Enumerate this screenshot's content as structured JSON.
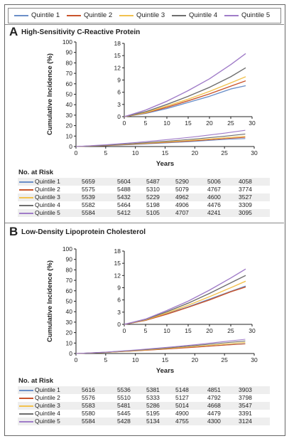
{
  "legend": [
    {
      "name": "Quintile 1",
      "color": "#6b8fc8"
    },
    {
      "name": "Quintile 2",
      "color": "#c9542c"
    },
    {
      "name": "Quintile 3",
      "color": "#f2c24e"
    },
    {
      "name": "Quintile 4",
      "color": "#6e6e6e"
    },
    {
      "name": "Quintile 5",
      "color": "#a07cc8"
    }
  ],
  "chart_data": [
    {
      "type": "line",
      "panel_letter": "A",
      "title": "High-Sensitivity C-Reactive Protein",
      "xlabel": "Years",
      "ylabel": "Cumulative Incidence (%)",
      "xlim": [
        0,
        30
      ],
      "ylim": [
        0,
        100
      ],
      "x_ticks": [
        0,
        5,
        10,
        15,
        20,
        25,
        30
      ],
      "y_ticks": [
        0,
        10,
        20,
        30,
        40,
        50,
        60,
        70,
        80,
        90,
        100
      ],
      "inset": {
        "xlim": [
          0,
          30
        ],
        "ylim": [
          0,
          18
        ],
        "x_ticks": [
          0,
          5,
          10,
          15,
          20,
          25,
          30
        ],
        "y_ticks": [
          0,
          3,
          6,
          9,
          12,
          15,
          18
        ]
      },
      "x": [
        0,
        5,
        10,
        15,
        20,
        25,
        28.5
      ],
      "series": [
        {
          "name": "Quintile 1",
          "values": [
            0,
            0.8,
            2.0,
            3.5,
            5.0,
            6.8,
            7.6
          ]
        },
        {
          "name": "Quintile 2",
          "values": [
            0,
            0.9,
            2.3,
            3.9,
            5.6,
            7.5,
            8.8
          ]
        },
        {
          "name": "Quintile 3",
          "values": [
            0,
            1.0,
            2.6,
            4.3,
            6.2,
            8.3,
            9.8
          ]
        },
        {
          "name": "Quintile 4",
          "values": [
            0,
            1.2,
            3.0,
            5.0,
            7.2,
            9.8,
            12.0
          ]
        },
        {
          "name": "Quintile 5",
          "values": [
            0,
            1.6,
            3.8,
            6.4,
            9.3,
            12.8,
            15.5
          ]
        }
      ],
      "at_risk": {
        "header": "No. at Risk",
        "rows": [
          {
            "name": "Quintile 1",
            "values": [
              "5659",
              "5604",
              "5487",
              "5290",
              "5006",
              "4058"
            ]
          },
          {
            "name": "Quintile 2",
            "values": [
              "5575",
              "5488",
              "5310",
              "5079",
              "4767",
              "3774"
            ]
          },
          {
            "name": "Quintile 3",
            "values": [
              "5539",
              "5432",
              "5229",
              "4962",
              "4600",
              "3527"
            ]
          },
          {
            "name": "Quintile 4",
            "values": [
              "5582",
              "5464",
              "5198",
              "4906",
              "4476",
              "3309"
            ]
          },
          {
            "name": "Quintile 5",
            "values": [
              "5584",
              "5412",
              "5105",
              "4707",
              "4241",
              "3095"
            ]
          }
        ]
      }
    },
    {
      "type": "line",
      "panel_letter": "B",
      "title": "Low-Density Lipoprotein Cholesterol",
      "xlabel": "Years",
      "ylabel": "Cumulative Incidence (%)",
      "xlim": [
        0,
        30
      ],
      "ylim": [
        0,
        100
      ],
      "x_ticks": [
        0,
        5,
        10,
        15,
        20,
        25,
        30
      ],
      "y_ticks": [
        0,
        10,
        20,
        30,
        40,
        50,
        60,
        70,
        80,
        90,
        100
      ],
      "inset": {
        "xlim": [
          0,
          30
        ],
        "ylim": [
          0,
          18
        ],
        "x_ticks": [
          0,
          5,
          10,
          15,
          20,
          25,
          30
        ],
        "y_ticks": [
          0,
          3,
          6,
          9,
          12,
          15,
          18
        ]
      },
      "x": [
        0,
        5,
        10,
        15,
        20,
        25,
        28.5
      ],
      "series": [
        {
          "name": "Quintile 1",
          "values": [
            0,
            1.0,
            2.6,
            4.3,
            6.2,
            8.1,
            9.4
          ]
        },
        {
          "name": "Quintile 2",
          "values": [
            0,
            1.0,
            2.5,
            4.2,
            6.0,
            8.0,
            9.2
          ]
        },
        {
          "name": "Quintile 3",
          "values": [
            0,
            1.1,
            2.8,
            4.7,
            6.8,
            9.0,
            10.6
          ]
        },
        {
          "name": "Quintile 4",
          "values": [
            0,
            1.2,
            3.1,
            5.2,
            7.6,
            10.2,
            12.0
          ]
        },
        {
          "name": "Quintile 5",
          "values": [
            0,
            1.3,
            3.4,
            5.7,
            8.4,
            11.4,
            13.6
          ]
        }
      ],
      "at_risk": {
        "header": "No. at Risk",
        "rows": [
          {
            "name": "Quintile 1",
            "values": [
              "5616",
              "5536",
              "5381",
              "5148",
              "4851",
              "3903"
            ]
          },
          {
            "name": "Quintile 2",
            "values": [
              "5576",
              "5510",
              "5333",
              "5127",
              "4792",
              "3798"
            ]
          },
          {
            "name": "Quintile 3",
            "values": [
              "5583",
              "5481",
              "5286",
              "5014",
              "4668",
              "3547"
            ]
          },
          {
            "name": "Quintile 4",
            "values": [
              "5580",
              "5445",
              "5195",
              "4900",
              "4479",
              "3391"
            ]
          },
          {
            "name": "Quintile 5",
            "values": [
              "5584",
              "5428",
              "5134",
              "4755",
              "4300",
              "3124"
            ]
          }
        ]
      }
    }
  ]
}
